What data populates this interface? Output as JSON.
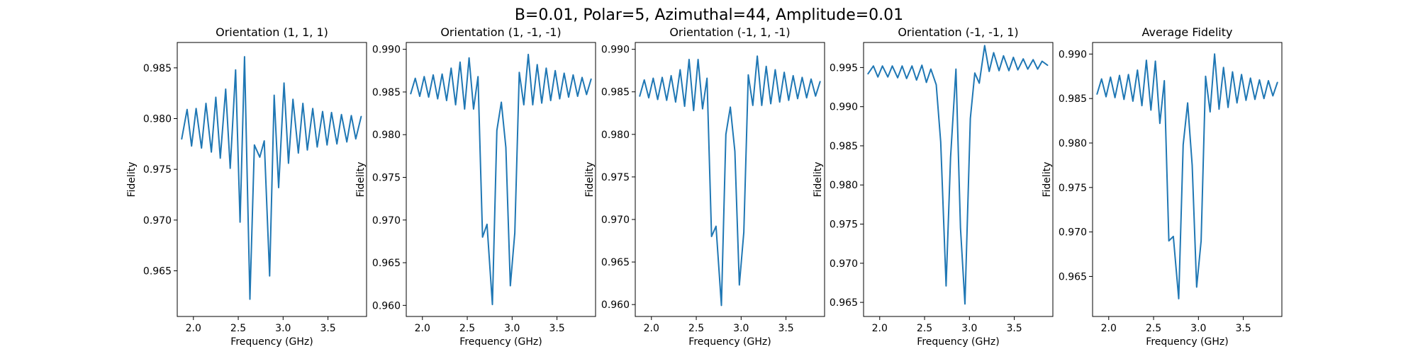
{
  "figure": {
    "suptitle": "B=0.01, Polar=5, Azimuthal=44, Amplitude=0.01",
    "line_color": "#1f77b4"
  },
  "chart_data": [
    {
      "type": "line",
      "title": "Orientation (1, 1, 1)",
      "xlabel": "Frequency (GHz)",
      "ylabel": "Fidelity",
      "xlim": [
        1.82,
        3.93
      ],
      "ylim": [
        0.9605,
        0.9875
      ],
      "xticks": [
        2.0,
        2.5,
        3.0,
        3.5
      ],
      "xtick_labels": [
        "2.0",
        "2.5",
        "3.0",
        "3.5"
      ],
      "yticks": [
        0.965,
        0.97,
        0.975,
        0.98,
        0.985
      ],
      "ytick_labels": [
        "0.965",
        "0.970",
        "0.975",
        "0.980",
        "0.985"
      ],
      "grid": false,
      "series": [
        {
          "x": [
            1.87,
            1.93,
            1.98,
            2.03,
            2.09,
            2.14,
            2.2,
            2.25,
            2.3,
            2.36,
            2.41,
            2.47,
            2.52,
            2.57,
            2.63,
            2.68,
            2.74,
            2.79,
            2.85,
            2.9,
            2.95,
            3.01,
            3.06,
            3.11,
            3.17,
            3.22,
            3.27,
            3.33,
            3.38,
            3.44,
            3.49,
            3.54,
            3.6,
            3.65,
            3.71,
            3.76,
            3.81,
            3.87
          ],
          "y": [
            0.978,
            0.9809,
            0.9773,
            0.981,
            0.9771,
            0.9815,
            0.9767,
            0.9821,
            0.9761,
            0.9829,
            0.9751,
            0.9848,
            0.9698,
            0.9861,
            0.9622,
            0.9774,
            0.9762,
            0.9778,
            0.9645,
            0.9823,
            0.9732,
            0.9835,
            0.9756,
            0.9819,
            0.9766,
            0.9815,
            0.9769,
            0.981,
            0.9772,
            0.9807,
            0.9774,
            0.9806,
            0.9775,
            0.9804,
            0.9777,
            0.9803,
            0.978,
            0.9802
          ]
        }
      ]
    },
    {
      "type": "line",
      "title": "Orientation (1, -1, -1)",
      "xlabel": "Frequency (GHz)",
      "ylabel": "Fidelity",
      "xlim": [
        1.82,
        3.93
      ],
      "ylim": [
        0.9587,
        0.9908
      ],
      "xticks": [
        2.0,
        2.5,
        3.0,
        3.5
      ],
      "xtick_labels": [
        "2.0",
        "2.5",
        "3.0",
        "3.5"
      ],
      "yticks": [
        0.96,
        0.965,
        0.97,
        0.975,
        0.98,
        0.985,
        0.99
      ],
      "ytick_labels": [
        "0.960",
        "0.965",
        "0.970",
        "0.975",
        "0.980",
        "0.985",
        "0.990"
      ],
      "grid": false,
      "series": [
        {
          "x": [
            1.87,
            1.92,
            1.97,
            2.02,
            2.07,
            2.12,
            2.17,
            2.22,
            2.27,
            2.32,
            2.37,
            2.42,
            2.47,
            2.52,
            2.57,
            2.62,
            2.67,
            2.72,
            2.78,
            2.83,
            2.88,
            2.93,
            2.98,
            3.03,
            3.08,
            3.13,
            3.18,
            3.23,
            3.28,
            3.33,
            3.38,
            3.43,
            3.48,
            3.53,
            3.58,
            3.63,
            3.68,
            3.73,
            3.78,
            3.83,
            3.88
          ],
          "y": [
            0.9848,
            0.9866,
            0.9845,
            0.9868,
            0.9844,
            0.987,
            0.9842,
            0.9871,
            0.984,
            0.9878,
            0.9835,
            0.9885,
            0.983,
            0.989,
            0.983,
            0.9868,
            0.968,
            0.9695,
            0.9601,
            0.9805,
            0.9838,
            0.9785,
            0.9623,
            0.9685,
            0.9873,
            0.9835,
            0.9894,
            0.9835,
            0.9882,
            0.9837,
            0.9878,
            0.984,
            0.9875,
            0.9842,
            0.9872,
            0.9844,
            0.987,
            0.9845,
            0.9867,
            0.9847,
            0.9865
          ]
        }
      ]
    },
    {
      "type": "line",
      "title": "Orientation (-1, 1, -1)",
      "xlabel": "Frequency (GHz)",
      "ylabel": "Fidelity",
      "xlim": [
        1.82,
        3.93
      ],
      "ylim": [
        0.9586,
        0.9908
      ],
      "xticks": [
        2.0,
        2.5,
        3.0,
        3.5
      ],
      "xtick_labels": [
        "2.0",
        "2.5",
        "3.0",
        "3.5"
      ],
      "yticks": [
        0.96,
        0.965,
        0.97,
        0.975,
        0.98,
        0.985,
        0.99
      ],
      "ytick_labels": [
        "0.960",
        "0.965",
        "0.970",
        "0.975",
        "0.980",
        "0.985",
        "0.990"
      ],
      "grid": false,
      "series": [
        {
          "x": [
            1.87,
            1.92,
            1.97,
            2.02,
            2.07,
            2.12,
            2.17,
            2.22,
            2.27,
            2.32,
            2.37,
            2.42,
            2.47,
            2.52,
            2.57,
            2.62,
            2.67,
            2.72,
            2.78,
            2.83,
            2.88,
            2.93,
            2.98,
            3.03,
            3.08,
            3.13,
            3.18,
            3.23,
            3.28,
            3.33,
            3.38,
            3.43,
            3.48,
            3.53,
            3.58,
            3.63,
            3.68,
            3.73,
            3.78,
            3.83,
            3.88
          ],
          "y": [
            0.9845,
            0.9864,
            0.9843,
            0.9866,
            0.9841,
            0.9867,
            0.984,
            0.9869,
            0.9838,
            0.9876,
            0.9833,
            0.9888,
            0.9828,
            0.9888,
            0.983,
            0.9866,
            0.968,
            0.9692,
            0.9599,
            0.98,
            0.9832,
            0.978,
            0.9623,
            0.9685,
            0.987,
            0.9834,
            0.9892,
            0.9834,
            0.988,
            0.9836,
            0.9876,
            0.9838,
            0.9873,
            0.984,
            0.9869,
            0.9842,
            0.9867,
            0.9843,
            0.9865,
            0.9845,
            0.9862
          ]
        }
      ]
    },
    {
      "type": "line",
      "title": "Orientation (-1, -1, 1)",
      "xlabel": "Frequency (GHz)",
      "ylabel": "Fidelity",
      "xlim": [
        1.82,
        3.93
      ],
      "ylim": [
        0.9632,
        0.9982
      ],
      "xticks": [
        2.0,
        2.5,
        3.0,
        3.5
      ],
      "xtick_labels": [
        "2.0",
        "2.5",
        "3.0",
        "3.5"
      ],
      "yticks": [
        0.965,
        0.97,
        0.975,
        0.98,
        0.985,
        0.99,
        0.995
      ],
      "ytick_labels": [
        "0.965",
        "0.970",
        "0.975",
        "0.980",
        "0.985",
        "0.990",
        "0.995"
      ],
      "grid": false,
      "series": [
        {
          "x": [
            1.87,
            1.93,
            1.98,
            2.03,
            2.09,
            2.14,
            2.2,
            2.25,
            2.3,
            2.36,
            2.41,
            2.47,
            2.52,
            2.57,
            2.63,
            2.68,
            2.74,
            2.79,
            2.85,
            2.9,
            2.95,
            3.01,
            3.06,
            3.11,
            3.17,
            3.22,
            3.27,
            3.33,
            3.38,
            3.44,
            3.49,
            3.54,
            3.6,
            3.65,
            3.71,
            3.76,
            3.81,
            3.87
          ],
          "y": [
            0.9942,
            0.9952,
            0.9938,
            0.9952,
            0.9938,
            0.9952,
            0.9937,
            0.9952,
            0.9936,
            0.9952,
            0.9934,
            0.9953,
            0.9931,
            0.9948,
            0.9928,
            0.9855,
            0.9671,
            0.9835,
            0.9948,
            0.9745,
            0.9648,
            0.9885,
            0.9943,
            0.993,
            0.9978,
            0.9945,
            0.9969,
            0.9946,
            0.9965,
            0.9946,
            0.9963,
            0.9947,
            0.9961,
            0.9948,
            0.996,
            0.9948,
            0.9958,
            0.9953
          ]
        }
      ]
    },
    {
      "type": "line",
      "title": "Average Fidelity",
      "xlabel": "Frequency (GHz)",
      "ylabel": "Fidelity",
      "xlim": [
        1.82,
        3.93
      ],
      "ylim": [
        0.9605,
        0.9913
      ],
      "xticks": [
        2.0,
        2.5,
        3.0,
        3.5
      ],
      "xtick_labels": [
        "2.0",
        "2.5",
        "3.0",
        "3.5"
      ],
      "yticks": [
        0.965,
        0.97,
        0.975,
        0.98,
        0.985,
        0.99
      ],
      "ytick_labels": [
        "0.965",
        "0.970",
        "0.975",
        "0.980",
        "0.985",
        "0.990"
      ],
      "grid": false,
      "series": [
        {
          "x": [
            1.87,
            1.92,
            1.97,
            2.02,
            2.07,
            2.12,
            2.17,
            2.22,
            2.27,
            2.32,
            2.37,
            2.42,
            2.47,
            2.52,
            2.57,
            2.62,
            2.67,
            2.72,
            2.78,
            2.83,
            2.88,
            2.93,
            2.98,
            3.03,
            3.08,
            3.13,
            3.18,
            3.23,
            3.28,
            3.33,
            3.38,
            3.43,
            3.48,
            3.53,
            3.58,
            3.63,
            3.68,
            3.73,
            3.78,
            3.83,
            3.88
          ],
          "y": [
            0.9855,
            0.9872,
            0.9852,
            0.9874,
            0.9851,
            0.9876,
            0.9849,
            0.9877,
            0.9847,
            0.9882,
            0.9842,
            0.9893,
            0.9837,
            0.9892,
            0.9822,
            0.987,
            0.969,
            0.9695,
            0.9625,
            0.9798,
            0.9845,
            0.9775,
            0.9638,
            0.969,
            0.9875,
            0.9835,
            0.99,
            0.9838,
            0.9885,
            0.984,
            0.988,
            0.9845,
            0.9877,
            0.9848,
            0.9873,
            0.9849,
            0.9871,
            0.985,
            0.987,
            0.9853,
            0.9868
          ]
        }
      ]
    }
  ]
}
